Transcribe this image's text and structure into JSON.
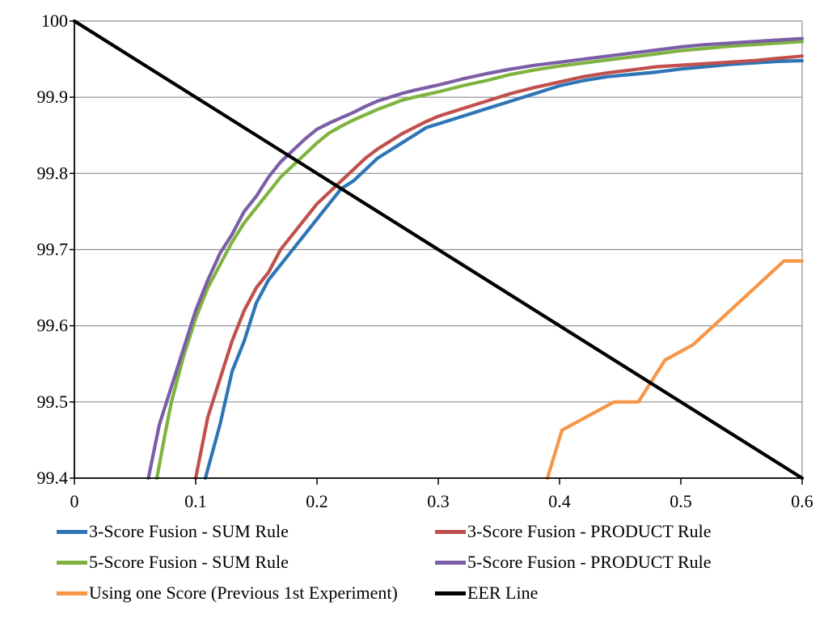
{
  "chart_data": {
    "type": "line",
    "title": "",
    "xlabel": "",
    "ylabel": "",
    "xlim": [
      0,
      0.6
    ],
    "ylim": [
      99.4,
      100
    ],
    "x_ticks": [
      "0",
      "0.1",
      "0.2",
      "0.3",
      "0.4",
      "0.5",
      "0.6"
    ],
    "y_ticks": [
      "100",
      "99.9",
      "99.8",
      "99.7",
      "99.6",
      "99.5",
      "99.4"
    ],
    "grid": "horizontal",
    "legend_position": "bottom",
    "series": [
      {
        "name": "3-Score Fusion - SUM Rule",
        "color": "#2E75B6",
        "points": [
          [
            0.108,
            99.4
          ],
          [
            0.12,
            99.47
          ],
          [
            0.13,
            99.54
          ],
          [
            0.14,
            99.58
          ],
          [
            0.15,
            99.63
          ],
          [
            0.16,
            99.66
          ],
          [
            0.17,
            99.68
          ],
          [
            0.18,
            99.7
          ],
          [
            0.19,
            99.72
          ],
          [
            0.2,
            99.74
          ],
          [
            0.21,
            99.76
          ],
          [
            0.22,
            99.78
          ],
          [
            0.23,
            99.79
          ],
          [
            0.24,
            99.805
          ],
          [
            0.25,
            99.82
          ],
          [
            0.26,
            99.83
          ],
          [
            0.27,
            99.84
          ],
          [
            0.28,
            99.85
          ],
          [
            0.29,
            99.86
          ],
          [
            0.3,
            99.865
          ],
          [
            0.32,
            99.875
          ],
          [
            0.34,
            99.885
          ],
          [
            0.36,
            99.895
          ],
          [
            0.38,
            99.905
          ],
          [
            0.4,
            99.915
          ],
          [
            0.42,
            99.922
          ],
          [
            0.44,
            99.927
          ],
          [
            0.46,
            99.93
          ],
          [
            0.48,
            99.933
          ],
          [
            0.5,
            99.937
          ],
          [
            0.52,
            99.94
          ],
          [
            0.54,
            99.943
          ],
          [
            0.56,
            99.945
          ],
          [
            0.58,
            99.947
          ],
          [
            0.6,
            99.948
          ]
        ]
      },
      {
        "name": "3-Score Fusion - PRODUCT Rule",
        "color": "#C0504D",
        "points": [
          [
            0.1,
            99.4
          ],
          [
            0.11,
            99.48
          ],
          [
            0.12,
            99.53
          ],
          [
            0.13,
            99.58
          ],
          [
            0.14,
            99.62
          ],
          [
            0.15,
            99.65
          ],
          [
            0.16,
            99.67
          ],
          [
            0.17,
            99.7
          ],
          [
            0.18,
            99.72
          ],
          [
            0.19,
            99.74
          ],
          [
            0.2,
            99.76
          ],
          [
            0.21,
            99.775
          ],
          [
            0.22,
            99.79
          ],
          [
            0.23,
            99.805
          ],
          [
            0.24,
            99.82
          ],
          [
            0.25,
            99.832
          ],
          [
            0.26,
            99.842
          ],
          [
            0.27,
            99.852
          ],
          [
            0.28,
            99.86
          ],
          [
            0.29,
            99.868
          ],
          [
            0.3,
            99.875
          ],
          [
            0.32,
            99.885
          ],
          [
            0.34,
            99.895
          ],
          [
            0.36,
            99.905
          ],
          [
            0.38,
            99.913
          ],
          [
            0.4,
            99.92
          ],
          [
            0.42,
            99.927
          ],
          [
            0.44,
            99.932
          ],
          [
            0.46,
            99.936
          ],
          [
            0.48,
            99.94
          ],
          [
            0.5,
            99.942
          ],
          [
            0.52,
            99.944
          ],
          [
            0.54,
            99.946
          ],
          [
            0.56,
            99.948
          ],
          [
            0.58,
            99.951
          ],
          [
            0.6,
            99.954
          ]
        ]
      },
      {
        "name": "5-Score Fusion - SUM Rule",
        "color": "#7FB33F",
        "points": [
          [
            0.068,
            99.4
          ],
          [
            0.075,
            99.46
          ],
          [
            0.08,
            99.5
          ],
          [
            0.09,
            99.56
          ],
          [
            0.1,
            99.61
          ],
          [
            0.11,
            99.65
          ],
          [
            0.12,
            99.68
          ],
          [
            0.13,
            99.71
          ],
          [
            0.14,
            99.735
          ],
          [
            0.15,
            99.755
          ],
          [
            0.16,
            99.775
          ],
          [
            0.17,
            99.795
          ],
          [
            0.18,
            99.81
          ],
          [
            0.19,
            99.825
          ],
          [
            0.2,
            99.84
          ],
          [
            0.21,
            99.853
          ],
          [
            0.22,
            99.862
          ],
          [
            0.23,
            99.87
          ],
          [
            0.24,
            99.877
          ],
          [
            0.25,
            99.884
          ],
          [
            0.26,
            99.89
          ],
          [
            0.27,
            99.896
          ],
          [
            0.28,
            99.9
          ],
          [
            0.3,
            99.907
          ],
          [
            0.32,
            99.915
          ],
          [
            0.34,
            99.922
          ],
          [
            0.36,
            99.93
          ],
          [
            0.38,
            99.936
          ],
          [
            0.4,
            99.941
          ],
          [
            0.42,
            99.945
          ],
          [
            0.44,
            99.949
          ],
          [
            0.46,
            99.953
          ],
          [
            0.48,
            99.957
          ],
          [
            0.5,
            99.961
          ],
          [
            0.52,
            99.964
          ],
          [
            0.54,
            99.967
          ],
          [
            0.56,
            99.969
          ],
          [
            0.58,
            99.971
          ],
          [
            0.6,
            99.973
          ]
        ]
      },
      {
        "name": "5-Score Fusion - PRODUCT Rule",
        "color": "#7B5EA7",
        "points": [
          [
            0.061,
            99.4
          ],
          [
            0.07,
            99.47
          ],
          [
            0.08,
            99.52
          ],
          [
            0.09,
            99.57
          ],
          [
            0.1,
            99.62
          ],
          [
            0.11,
            99.66
          ],
          [
            0.12,
            99.695
          ],
          [
            0.13,
            99.72
          ],
          [
            0.14,
            99.75
          ],
          [
            0.15,
            99.77
          ],
          [
            0.16,
            99.795
          ],
          [
            0.17,
            99.815
          ],
          [
            0.18,
            99.83
          ],
          [
            0.19,
            99.845
          ],
          [
            0.2,
            99.858
          ],
          [
            0.21,
            99.866
          ],
          [
            0.22,
            99.873
          ],
          [
            0.23,
            99.88
          ],
          [
            0.24,
            99.888
          ],
          [
            0.25,
            99.895
          ],
          [
            0.26,
            99.9
          ],
          [
            0.27,
            99.905
          ],
          [
            0.28,
            99.909
          ],
          [
            0.3,
            99.916
          ],
          [
            0.32,
            99.924
          ],
          [
            0.34,
            99.931
          ],
          [
            0.36,
            99.937
          ],
          [
            0.38,
            99.942
          ],
          [
            0.4,
            99.946
          ],
          [
            0.42,
            99.95
          ],
          [
            0.44,
            99.954
          ],
          [
            0.46,
            99.958
          ],
          [
            0.48,
            99.962
          ],
          [
            0.5,
            99.966
          ],
          [
            0.52,
            99.969
          ],
          [
            0.54,
            99.971
          ],
          [
            0.56,
            99.973
          ],
          [
            0.58,
            99.975
          ],
          [
            0.6,
            99.977
          ]
        ]
      },
      {
        "name": "Using one Score (Previous 1st Experiment)",
        "color": "#F79646",
        "points": [
          [
            0.39,
            99.4
          ],
          [
            0.402,
            99.463
          ],
          [
            0.445,
            99.5
          ],
          [
            0.465,
            99.5
          ],
          [
            0.487,
            99.555
          ],
          [
            0.51,
            99.575
          ],
          [
            0.585,
            99.685
          ],
          [
            0.6,
            99.685
          ]
        ]
      },
      {
        "name": "EER Line",
        "color": "#000000",
        "points": [
          [
            0,
            100
          ],
          [
            0.6,
            99.4
          ]
        ]
      }
    ]
  }
}
